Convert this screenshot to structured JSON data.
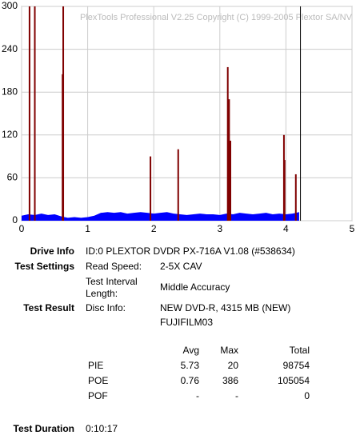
{
  "chart_data": {
    "type": "area-bar",
    "watermark": "PlexTools Professional V2.25 Copyright (C) 1999-2005 Plextor SA/NV",
    "xlim": [
      0,
      5
    ],
    "xticks": [
      0,
      1,
      2,
      3,
      4,
      5
    ],
    "ylim": [
      0,
      300
    ],
    "yticks": [
      0,
      60,
      120,
      180,
      240,
      300
    ],
    "grid": true,
    "end_marker": 4.22,
    "series": [
      {
        "name": "PIE",
        "color": "#0000ff",
        "x": [
          0,
          0.1,
          0.2,
          0.3,
          0.4,
          0.5,
          0.6,
          0.7,
          0.8,
          0.9,
          1.0,
          1.1,
          1.2,
          1.3,
          1.4,
          1.5,
          1.6,
          1.7,
          1.8,
          1.9,
          2.0,
          2.1,
          2.2,
          2.3,
          2.4,
          2.5,
          2.6,
          2.7,
          2.8,
          2.9,
          3.0,
          3.1,
          3.2,
          3.3,
          3.4,
          3.5,
          3.6,
          3.7,
          3.8,
          3.9,
          4.0,
          4.1,
          4.2
        ],
        "values": [
          7,
          9,
          8,
          10,
          8,
          9,
          6,
          4,
          5,
          4,
          5,
          7,
          11,
          12,
          11,
          12,
          10,
          11,
          12,
          11,
          10,
          11,
          12,
          10,
          9,
          8,
          9,
          10,
          9,
          9,
          8,
          10,
          9,
          11,
          10,
          9,
          10,
          11,
          9,
          10,
          9,
          10,
          12
        ]
      },
      {
        "name": "POE",
        "color": "#800000",
        "x": [
          0.12,
          0.2,
          0.62,
          0.63,
          1.95,
          2.37,
          3.12,
          3.14,
          3.16,
          3.97,
          3.98,
          4.15
        ],
        "values": [
          300,
          300,
          205,
          300,
          90,
          100,
          215,
          170,
          112,
          120,
          85,
          65
        ]
      }
    ]
  },
  "info": {
    "drive_label": "Drive Info",
    "drive": "ID:0 PLEXTOR DVDR PX-716A V1.08 (#538634)",
    "settings_label": "Test Settings",
    "read_speed_label": "Read Speed:",
    "read_speed": "2-5X CAV",
    "interval_label": [
      "Test Interval",
      "Length:"
    ],
    "interval": "Middle Accuracy",
    "result_label": "Test Result",
    "disc_label": "Disc Info:",
    "disc": [
      "NEW DVD-R, 4315 MB (NEW)",
      "FUJIFILM03"
    ],
    "table": {
      "header": [
        "Avg",
        "Max",
        "Total"
      ],
      "rows": [
        [
          "PIE",
          5.73,
          20,
          98754
        ],
        [
          "POE",
          0.76,
          386,
          105054
        ],
        [
          "POF",
          "-",
          "-",
          0
        ]
      ]
    },
    "duration_label": "Test Duration",
    "duration": "0:10:17"
  }
}
